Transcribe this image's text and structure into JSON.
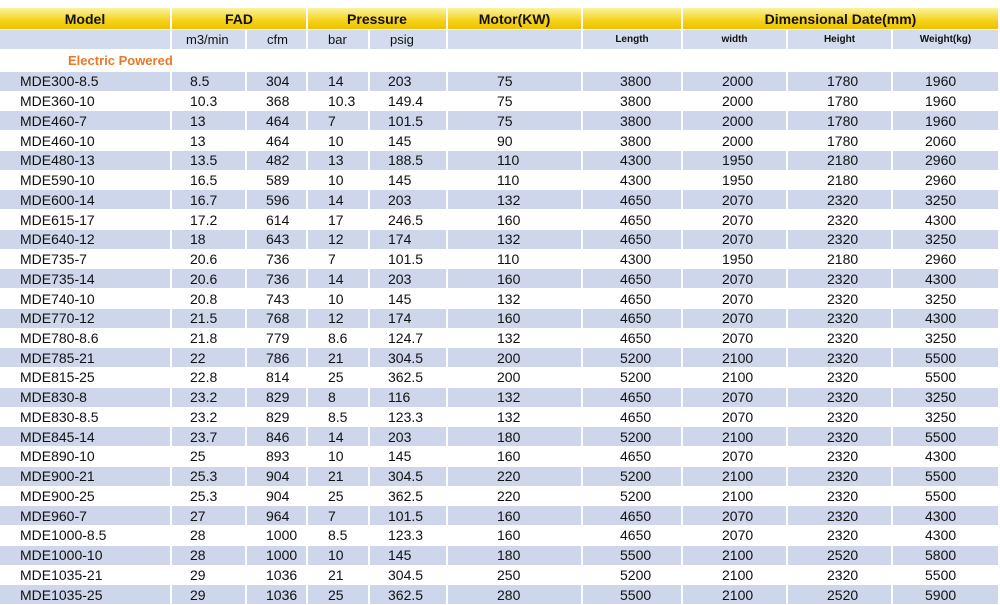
{
  "header": {
    "groups": [
      "Model",
      "FAD",
      "Pressure",
      "Motor(KW)",
      "Dimensional Date(mm)"
    ],
    "units": [
      "m3/min",
      "cfm",
      "bar",
      "psig",
      "Length",
      "width",
      "Height",
      "Weight(kg)"
    ]
  },
  "section": "Electric Powered",
  "table": {
    "rows": [
      [
        "MDE300-8.5",
        "8.5",
        "304",
        "14",
        "203",
        "75",
        "3800",
        "2000",
        "1780",
        "1960"
      ],
      [
        "MDE360-10",
        "10.3",
        "368",
        "10.3",
        "149.4",
        "75",
        "3800",
        "2000",
        "1780",
        "1960"
      ],
      [
        "MDE460-7",
        "13",
        "464",
        "7",
        "101.5",
        "75",
        "3800",
        "2000",
        "1780",
        "1960"
      ],
      [
        "MDE460-10",
        "13",
        "464",
        "10",
        "145",
        "90",
        "3800",
        "2000",
        "1780",
        "2060"
      ],
      [
        "MDE480-13",
        "13.5",
        "482",
        "13",
        "188.5",
        "110",
        "4300",
        "1950",
        "2180",
        "2960"
      ],
      [
        "MDE590-10",
        "16.5",
        "589",
        "10",
        "145",
        "110",
        "4300",
        "1950",
        "2180",
        "2960"
      ],
      [
        "MDE600-14",
        "16.7",
        "596",
        "14",
        "203",
        "132",
        "4650",
        "2070",
        "2320",
        "3250"
      ],
      [
        "MDE615-17",
        "17.2",
        "614",
        "17",
        "246.5",
        "160",
        "4650",
        "2070",
        "2320",
        "4300"
      ],
      [
        "MDE640-12",
        "18",
        "643",
        "12",
        "174",
        "132",
        "4650",
        "2070",
        "2320",
        "3250"
      ],
      [
        "MDE735-7",
        "20.6",
        "736",
        "7",
        "101.5",
        "110",
        "4300",
        "1950",
        "2180",
        "2960"
      ],
      [
        "MDE735-14",
        "20.6",
        "736",
        "14",
        "203",
        "160",
        "4650",
        "2070",
        "2320",
        "4300"
      ],
      [
        "MDE740-10",
        "20.8",
        "743",
        "10",
        "145",
        "132",
        "4650",
        "2070",
        "2320",
        "3250"
      ],
      [
        "MDE770-12",
        "21.5",
        "768",
        "12",
        "174",
        "160",
        "4650",
        "2070",
        "2320",
        "4300"
      ],
      [
        "MDE780-8.6",
        "21.8",
        "779",
        "8.6",
        "124.7",
        "132",
        "4650",
        "2070",
        "2320",
        "3250"
      ],
      [
        "MDE785-21",
        "22",
        "786",
        "21",
        "304.5",
        "200",
        "5200",
        "2100",
        "2320",
        "5500"
      ],
      [
        "MDE815-25",
        "22.8",
        "814",
        "25",
        "362.5",
        "200",
        "5200",
        "2100",
        "2320",
        "5500"
      ],
      [
        "MDE830-8",
        "23.2",
        "829",
        "8",
        "116",
        "132",
        "4650",
        "2070",
        "2320",
        "3250"
      ],
      [
        "MDE830-8.5",
        "23.2",
        "829",
        "8.5",
        "123.3",
        "132",
        "4650",
        "2070",
        "2320",
        "3250"
      ],
      [
        "MDE845-14",
        "23.7",
        "846",
        "14",
        "203",
        "180",
        "5200",
        "2100",
        "2320",
        "5500"
      ],
      [
        "MDE890-10",
        "25",
        "893",
        "10",
        "145",
        "160",
        "4650",
        "2070",
        "2320",
        "4300"
      ],
      [
        "MDE900-21",
        "25.3",
        "904",
        "21",
        "304.5",
        "220",
        "5200",
        "2100",
        "2320",
        "5500"
      ],
      [
        "MDE900-25",
        "25.3",
        "904",
        "25",
        "362.5",
        "220",
        "5200",
        "2100",
        "2320",
        "5500"
      ],
      [
        "MDE960-7",
        "27",
        "964",
        "7",
        "101.5",
        "160",
        "4650",
        "2070",
        "2320",
        "4300"
      ],
      [
        "MDE1000-8.5",
        "28",
        "1000",
        "8.5",
        "123.3",
        "160",
        "4650",
        "2070",
        "2320",
        "4300"
      ],
      [
        "MDE1000-10",
        "28",
        "1000",
        "10",
        "145",
        "180",
        "5500",
        "2100",
        "2520",
        "5800"
      ],
      [
        "MDE1035-21",
        "29",
        "1036",
        "21",
        "304.5",
        "250",
        "5200",
        "2100",
        "2320",
        "5500"
      ],
      [
        "MDE1035-25",
        "29",
        "1036",
        "25",
        "362.5",
        "280",
        "5500",
        "2100",
        "2520",
        "5900"
      ]
    ]
  }
}
